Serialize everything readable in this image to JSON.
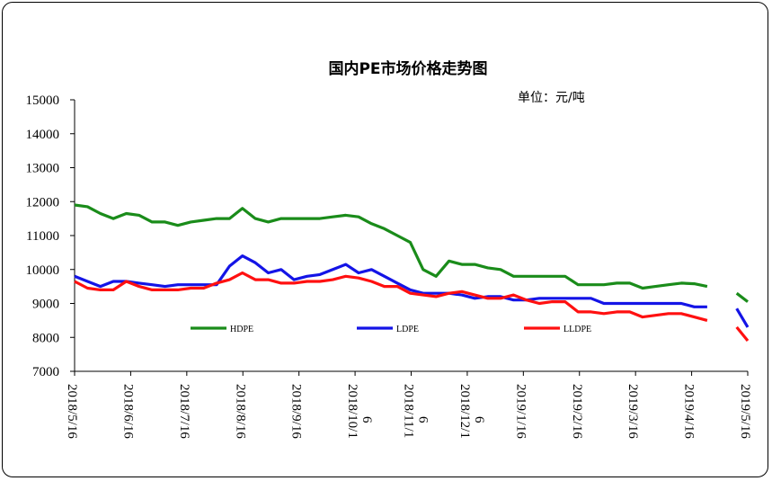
{
  "chart_data": {
    "type": "line",
    "title": "国内PE市场价格走势图",
    "unit_label": "单位：元/吨",
    "ylim": [
      7000,
      15000
    ],
    "yticks": [
      7000,
      8000,
      9000,
      10000,
      11000,
      12000,
      13000,
      14000,
      15000
    ],
    "x_tick_labels": [
      "2018/5/16",
      "2018/6/16",
      "2018/7/16",
      "2018/8/16",
      "2018/9/16",
      "2018/10/16",
      "2018/11/16",
      "2018/12/16",
      "2019/1/16",
      "2019/2/16",
      "2019/3/16",
      "2019/4/16",
      "2019/5/16"
    ],
    "x_start": "2018-05-16",
    "x_end": "2019-05-16",
    "legend_position": "bottom",
    "grid": false,
    "series": [
      {
        "name": "HDPE",
        "color": "#1a8c1a",
        "segments": [
          [
            [
              "2018-05-16",
              11900
            ],
            [
              "2018-05-23",
              11850
            ],
            [
              "2018-05-30",
              11650
            ],
            [
              "2018-06-06",
              11500
            ],
            [
              "2018-06-13",
              11650
            ],
            [
              "2018-06-20",
              11600
            ],
            [
              "2018-06-27",
              11400
            ],
            [
              "2018-07-04",
              11400
            ],
            [
              "2018-07-11",
              11300
            ],
            [
              "2018-07-18",
              11400
            ],
            [
              "2018-07-25",
              11450
            ],
            [
              "2018-08-01",
              11500
            ],
            [
              "2018-08-08",
              11500
            ],
            [
              "2018-08-15",
              11800
            ],
            [
              "2018-08-22",
              11500
            ],
            [
              "2018-08-29",
              11400
            ],
            [
              "2018-09-05",
              11500
            ],
            [
              "2018-09-12",
              11500
            ],
            [
              "2018-09-19",
              11500
            ],
            [
              "2018-09-26",
              11500
            ],
            [
              "2018-10-03",
              11550
            ],
            [
              "2018-10-10",
              11600
            ],
            [
              "2018-10-17",
              11550
            ],
            [
              "2018-10-24",
              11350
            ],
            [
              "2018-10-31",
              11200
            ],
            [
              "2018-11-07",
              11000
            ],
            [
              "2018-11-14",
              10800
            ],
            [
              "2018-11-21",
              10000
            ],
            [
              "2018-11-28",
              9800
            ],
            [
              "2018-12-05",
              10250
            ],
            [
              "2018-12-12",
              10150
            ],
            [
              "2018-12-19",
              10150
            ],
            [
              "2018-12-26",
              10050
            ],
            [
              "2019-01-02",
              10000
            ],
            [
              "2019-01-09",
              9800
            ],
            [
              "2019-01-16",
              9800
            ],
            [
              "2019-01-23",
              9800
            ],
            [
              "2019-01-30",
              9800
            ],
            [
              "2019-02-06",
              9800
            ],
            [
              "2019-02-13",
              9550
            ],
            [
              "2019-02-20",
              9550
            ],
            [
              "2019-02-27",
              9550
            ],
            [
              "2019-03-06",
              9600
            ],
            [
              "2019-03-13",
              9600
            ],
            [
              "2019-03-20",
              9450
            ],
            [
              "2019-03-27",
              9500
            ],
            [
              "2019-04-03",
              9550
            ],
            [
              "2019-04-10",
              9600
            ],
            [
              "2019-04-17",
              9580
            ],
            [
              "2019-04-24",
              9500
            ]
          ],
          [
            [
              "2019-05-10",
              9300
            ],
            [
              "2019-05-16",
              9050
            ]
          ]
        ]
      },
      {
        "name": "LDPE",
        "color": "#1414e6",
        "segments": [
          [
            [
              "2018-05-16",
              9800
            ],
            [
              "2018-05-23",
              9650
            ],
            [
              "2018-05-30",
              9500
            ],
            [
              "2018-06-06",
              9650
            ],
            [
              "2018-06-13",
              9650
            ],
            [
              "2018-06-20",
              9600
            ],
            [
              "2018-06-27",
              9550
            ],
            [
              "2018-07-04",
              9500
            ],
            [
              "2018-07-11",
              9550
            ],
            [
              "2018-07-18",
              9550
            ],
            [
              "2018-07-25",
              9550
            ],
            [
              "2018-08-01",
              9550
            ],
            [
              "2018-08-08",
              10100
            ],
            [
              "2018-08-15",
              10400
            ],
            [
              "2018-08-22",
              10200
            ],
            [
              "2018-08-29",
              9900
            ],
            [
              "2018-09-05",
              10000
            ],
            [
              "2018-09-12",
              9700
            ],
            [
              "2018-09-19",
              9800
            ],
            [
              "2018-09-26",
              9850
            ],
            [
              "2018-10-03",
              10000
            ],
            [
              "2018-10-10",
              10150
            ],
            [
              "2018-10-17",
              9900
            ],
            [
              "2018-10-24",
              10000
            ],
            [
              "2018-10-31",
              9800
            ],
            [
              "2018-11-07",
              9600
            ],
            [
              "2018-11-14",
              9400
            ],
            [
              "2018-11-21",
              9300
            ],
            [
              "2018-11-28",
              9300
            ],
            [
              "2018-12-05",
              9300
            ],
            [
              "2018-12-12",
              9250
            ],
            [
              "2018-12-19",
              9150
            ],
            [
              "2018-12-26",
              9200
            ],
            [
              "2019-01-02",
              9200
            ],
            [
              "2019-01-09",
              9100
            ],
            [
              "2019-01-16",
              9100
            ],
            [
              "2019-01-23",
              9150
            ],
            [
              "2019-01-30",
              9150
            ],
            [
              "2019-02-06",
              9150
            ],
            [
              "2019-02-13",
              9150
            ],
            [
              "2019-02-20",
              9150
            ],
            [
              "2019-02-27",
              9000
            ],
            [
              "2019-03-06",
              9000
            ],
            [
              "2019-03-13",
              9000
            ],
            [
              "2019-03-20",
              9000
            ],
            [
              "2019-03-27",
              9000
            ],
            [
              "2019-04-03",
              9000
            ],
            [
              "2019-04-10",
              9000
            ],
            [
              "2019-04-17",
              8900
            ],
            [
              "2019-04-24",
              8900
            ]
          ],
          [
            [
              "2019-05-10",
              8850
            ],
            [
              "2019-05-16",
              8300
            ]
          ]
        ]
      },
      {
        "name": "LLDPE",
        "color": "#ff1010",
        "segments": [
          [
            [
              "2018-05-16",
              9650
            ],
            [
              "2018-05-23",
              9450
            ],
            [
              "2018-05-30",
              9400
            ],
            [
              "2018-06-06",
              9400
            ],
            [
              "2018-06-13",
              9650
            ],
            [
              "2018-06-20",
              9500
            ],
            [
              "2018-06-27",
              9400
            ],
            [
              "2018-07-04",
              9400
            ],
            [
              "2018-07-11",
              9400
            ],
            [
              "2018-07-18",
              9450
            ],
            [
              "2018-07-25",
              9450
            ],
            [
              "2018-08-01",
              9600
            ],
            [
              "2018-08-08",
              9700
            ],
            [
              "2018-08-15",
              9900
            ],
            [
              "2018-08-22",
              9700
            ],
            [
              "2018-08-29",
              9700
            ],
            [
              "2018-09-05",
              9600
            ],
            [
              "2018-09-12",
              9600
            ],
            [
              "2018-09-19",
              9650
            ],
            [
              "2018-09-26",
              9650
            ],
            [
              "2018-10-03",
              9700
            ],
            [
              "2018-10-10",
              9800
            ],
            [
              "2018-10-17",
              9750
            ],
            [
              "2018-10-24",
              9650
            ],
            [
              "2018-10-31",
              9500
            ],
            [
              "2018-11-07",
              9500
            ],
            [
              "2018-11-14",
              9300
            ],
            [
              "2018-11-21",
              9250
            ],
            [
              "2018-11-28",
              9200
            ],
            [
              "2018-12-05",
              9300
            ],
            [
              "2018-12-12",
              9350
            ],
            [
              "2018-12-19",
              9250
            ],
            [
              "2018-12-26",
              9150
            ],
            [
              "2019-01-02",
              9150
            ],
            [
              "2019-01-09",
              9250
            ],
            [
              "2019-01-16",
              9100
            ],
            [
              "2019-01-23",
              9000
            ],
            [
              "2019-01-30",
              9050
            ],
            [
              "2019-02-06",
              9050
            ],
            [
              "2019-02-13",
              8750
            ],
            [
              "2019-02-20",
              8750
            ],
            [
              "2019-02-27",
              8700
            ],
            [
              "2019-03-06",
              8750
            ],
            [
              "2019-03-13",
              8750
            ],
            [
              "2019-03-20",
              8600
            ],
            [
              "2019-03-27",
              8650
            ],
            [
              "2019-04-03",
              8700
            ],
            [
              "2019-04-10",
              8700
            ],
            [
              "2019-04-17",
              8600
            ],
            [
              "2019-04-24",
              8500
            ]
          ],
          [
            [
              "2019-05-10",
              8300
            ],
            [
              "2019-05-16",
              7900
            ]
          ]
        ]
      }
    ]
  }
}
